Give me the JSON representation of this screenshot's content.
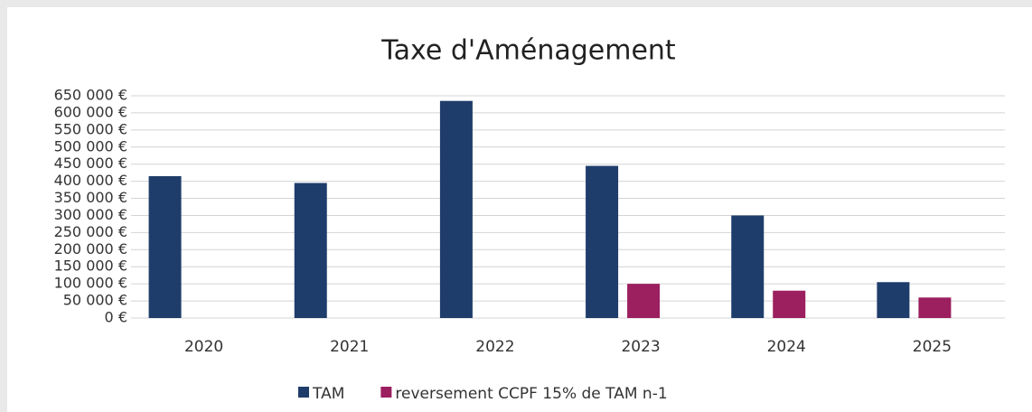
{
  "chart_data": {
    "type": "bar",
    "title": "Taxe d'Aménagement",
    "categories": [
      "2020",
      "2021",
      "2022",
      "2023",
      "2024",
      "2025"
    ],
    "series": [
      {
        "name": "TAM",
        "color": "#1f3d6b",
        "values": [
          415000,
          395000,
          635000,
          445000,
          300000,
          105000
        ]
      },
      {
        "name": "reversement CCPF 15% de TAM n-1",
        "color": "#9c1f5f",
        "values": [
          null,
          null,
          null,
          100000,
          80000,
          60000
        ]
      }
    ],
    "ylim": [
      0,
      650000
    ],
    "yticks": [
      {
        "value": 0,
        "label": "0 €"
      },
      {
        "value": 50000,
        "label": "50 000 €"
      },
      {
        "value": 100000,
        "label": "100 000 €"
      },
      {
        "value": 150000,
        "label": "150 000 €"
      },
      {
        "value": 200000,
        "label": "200 000 €"
      },
      {
        "value": 250000,
        "label": "250 000 €"
      },
      {
        "value": 300000,
        "label": "300 000 €"
      },
      {
        "value": 350000,
        "label": "350 000 €"
      },
      {
        "value": 400000,
        "label": "400 000 €"
      },
      {
        "value": 450000,
        "label": "450 000 €"
      },
      {
        "value": 500000,
        "label": "500 000 €"
      },
      {
        "value": 550000,
        "label": "550 000 €"
      },
      {
        "value": 600000,
        "label": "600 000 €"
      },
      {
        "value": 650000,
        "label": "650 000 €"
      }
    ],
    "grid": true,
    "legend": "bottom"
  }
}
